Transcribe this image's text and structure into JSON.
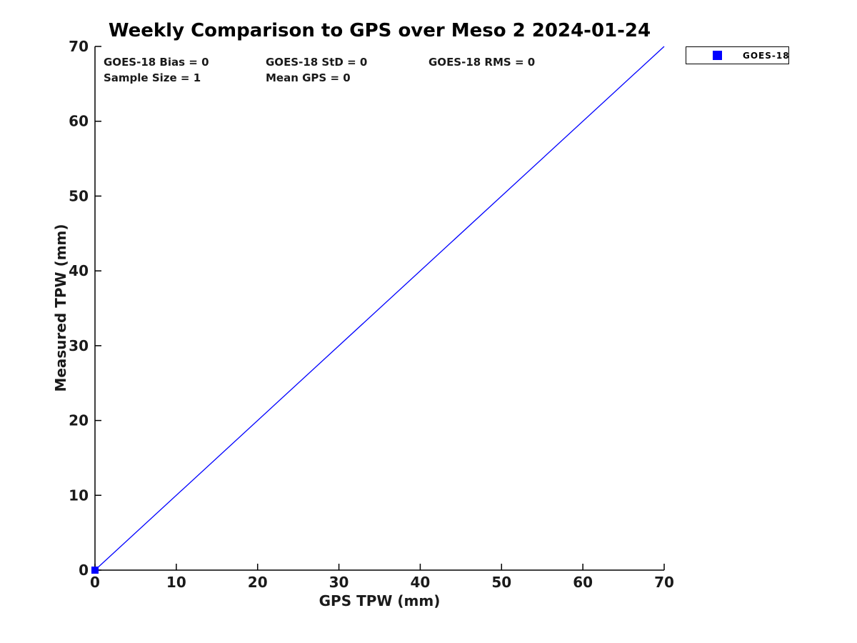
{
  "title": "Weekly Comparison to GPS over Meso 2 2024-01-24",
  "annotations": {
    "bias": "GOES-18 Bias = 0",
    "std": "GOES-18 StD = 0",
    "rms": "GOES-18 RMS = 0",
    "sample_size": "Sample Size = 1",
    "mean_gps": "Mean GPS = 0"
  },
  "axes": {
    "xlabel": "GPS TPW (mm)",
    "ylabel": "Measured TPW (mm)"
  },
  "legend": {
    "position": "top-right-outside",
    "items": [
      {
        "label": "GOES-18",
        "marker": "filled-square",
        "color": "#0000ff"
      }
    ]
  },
  "colors": {
    "background": "#ffffff",
    "axis": "#000000",
    "tick_text": "#1a1a1a",
    "series_blue": "#0000ff"
  },
  "chart_data": {
    "type": "scatter",
    "title": "Weekly Comparison to GPS over Meso 2 2024-01-24",
    "xlabel": "GPS TPW (mm)",
    "ylabel": "Measured TPW (mm)",
    "xlim": [
      0,
      70
    ],
    "ylim": [
      0,
      70
    ],
    "x_ticks": [
      0,
      10,
      20,
      30,
      40,
      50,
      60,
      70
    ],
    "y_ticks": [
      0,
      10,
      20,
      30,
      40,
      50,
      60,
      70
    ],
    "grid": false,
    "legend_position": "top-right-outside",
    "series": [
      {
        "name": "GOES-18",
        "kind": "scatter",
        "marker": "square",
        "marker_size": 10,
        "color": "#0000ff",
        "points": [
          [
            0,
            0
          ]
        ]
      },
      {
        "name": "identity-line",
        "kind": "line",
        "color": "#0000ff",
        "width": 1.3,
        "points": [
          [
            0,
            0
          ],
          [
            70,
            70
          ]
        ]
      }
    ],
    "stat_annotations": [
      "GOES-18 Bias = 0",
      "GOES-18 StD = 0",
      "GOES-18 RMS = 0",
      "Sample Size = 1",
      "Mean GPS = 0"
    ]
  }
}
